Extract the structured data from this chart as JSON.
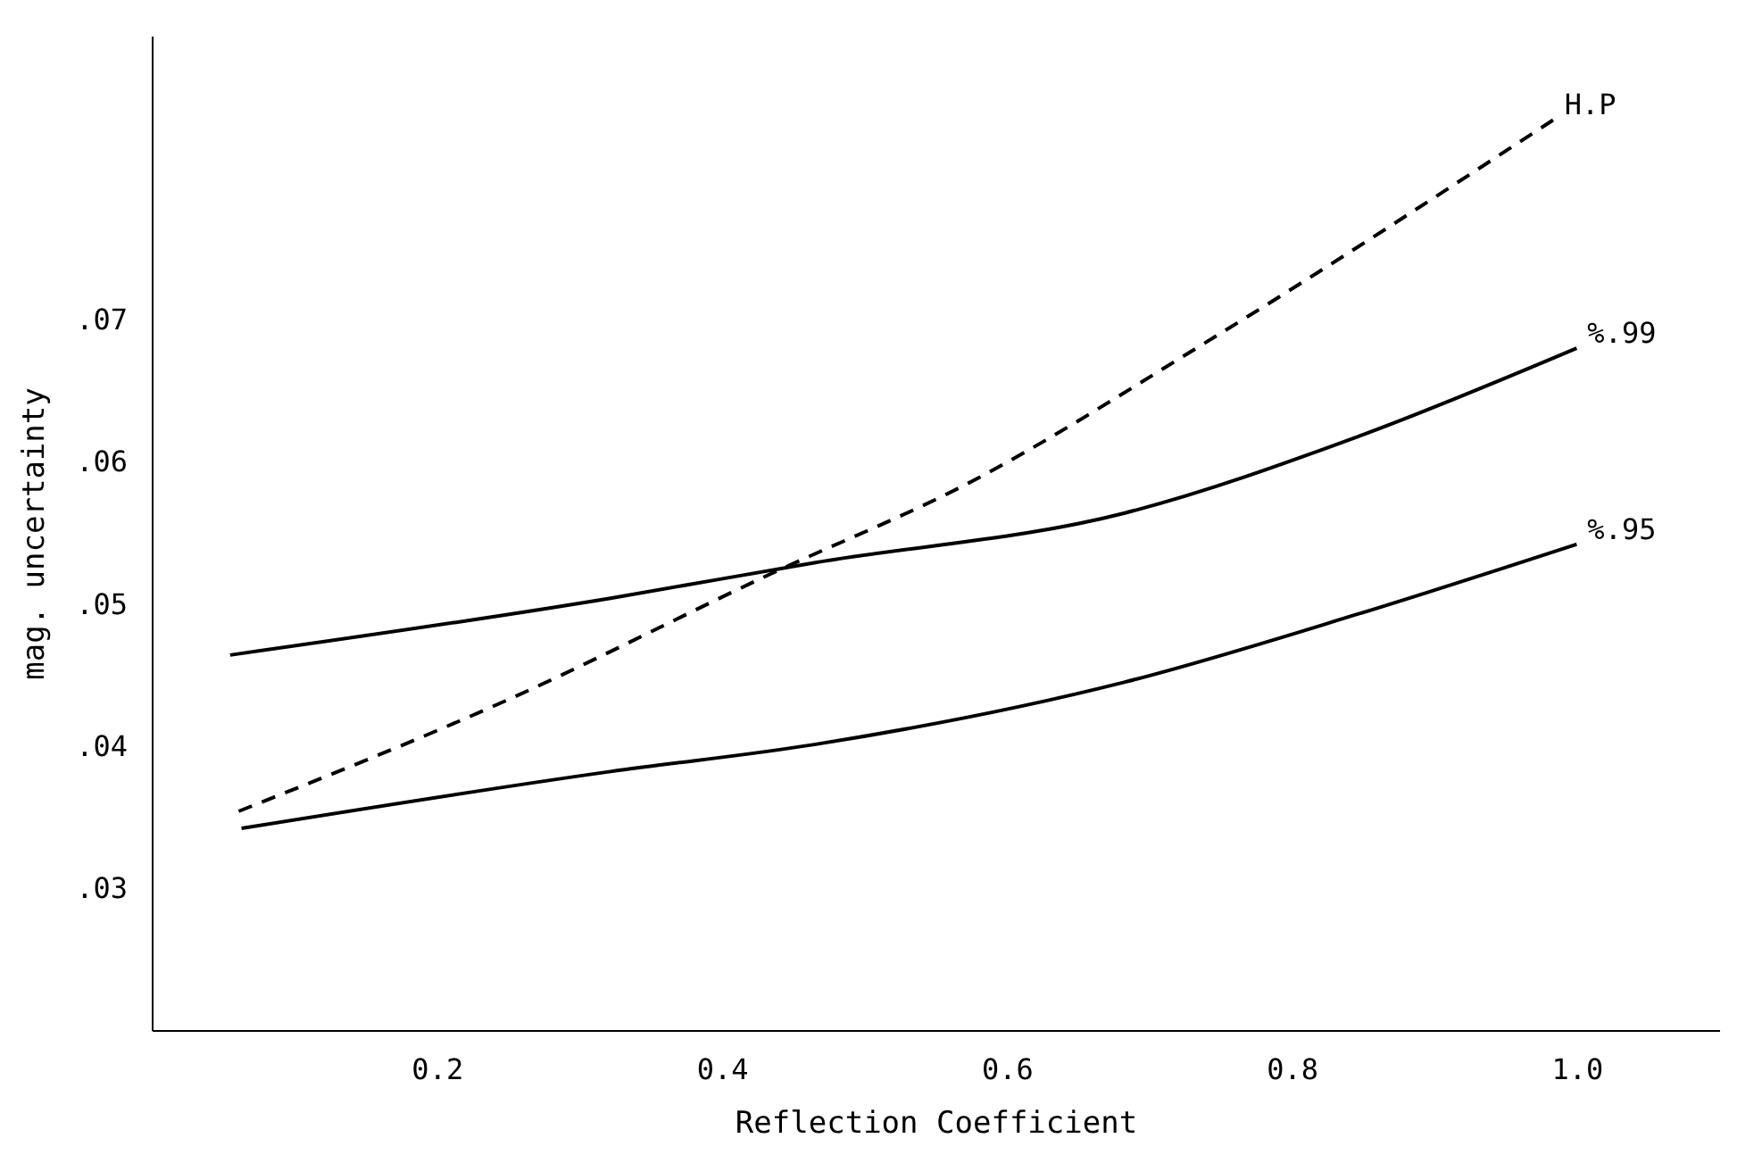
{
  "chart_data": {
    "type": "line",
    "xlabel": "Reflection Coefficient",
    "ylabel": "mag. uncertainty",
    "xlim": [
      0,
      1.1
    ],
    "ylim": [
      0.02,
      0.09
    ],
    "xticks": [
      {
        "value": 0.2,
        "label": "0.2"
      },
      {
        "value": 0.4,
        "label": "0.4"
      },
      {
        "value": 0.6,
        "label": "0.6"
      },
      {
        "value": 0.8,
        "label": "0.8"
      },
      {
        "value": 1.0,
        "label": "1.0"
      }
    ],
    "yticks": [
      {
        "value": 0.03,
        "label": ".03"
      },
      {
        "value": 0.04,
        "label": ".04"
      },
      {
        "value": 0.05,
        "label": ".05"
      },
      {
        "value": 0.06,
        "label": ".06"
      },
      {
        "value": 0.07,
        "label": ".07"
      }
    ],
    "grid": false,
    "marker": "none",
    "series": [
      {
        "name": "H.P",
        "color": "#000000",
        "line_style": "dashed",
        "x": [
          0.061,
          0.251,
          0.432,
          0.575,
          0.738,
          0.984
        ],
        "values": [
          0.0354,
          0.0433,
          0.052,
          0.0586,
          0.0683,
          0.0841
        ]
      },
      {
        "name": "%.99",
        "color": "#000000",
        "line_style": "solid",
        "x": [
          0.055,
          0.322,
          0.465,
          0.683,
          0.847,
          1.0
        ],
        "values": [
          0.0464,
          0.0504,
          0.0529,
          0.0564,
          0.0618,
          0.068
        ]
      },
      {
        "name": "%.95",
        "color": "#000000",
        "line_style": "solid",
        "x": [
          0.063,
          0.322,
          0.465,
          0.683,
          0.847,
          1.0
        ],
        "values": [
          0.0342,
          0.0382,
          0.0401,
          0.0445,
          0.0493,
          0.0542
        ]
      }
    ]
  }
}
